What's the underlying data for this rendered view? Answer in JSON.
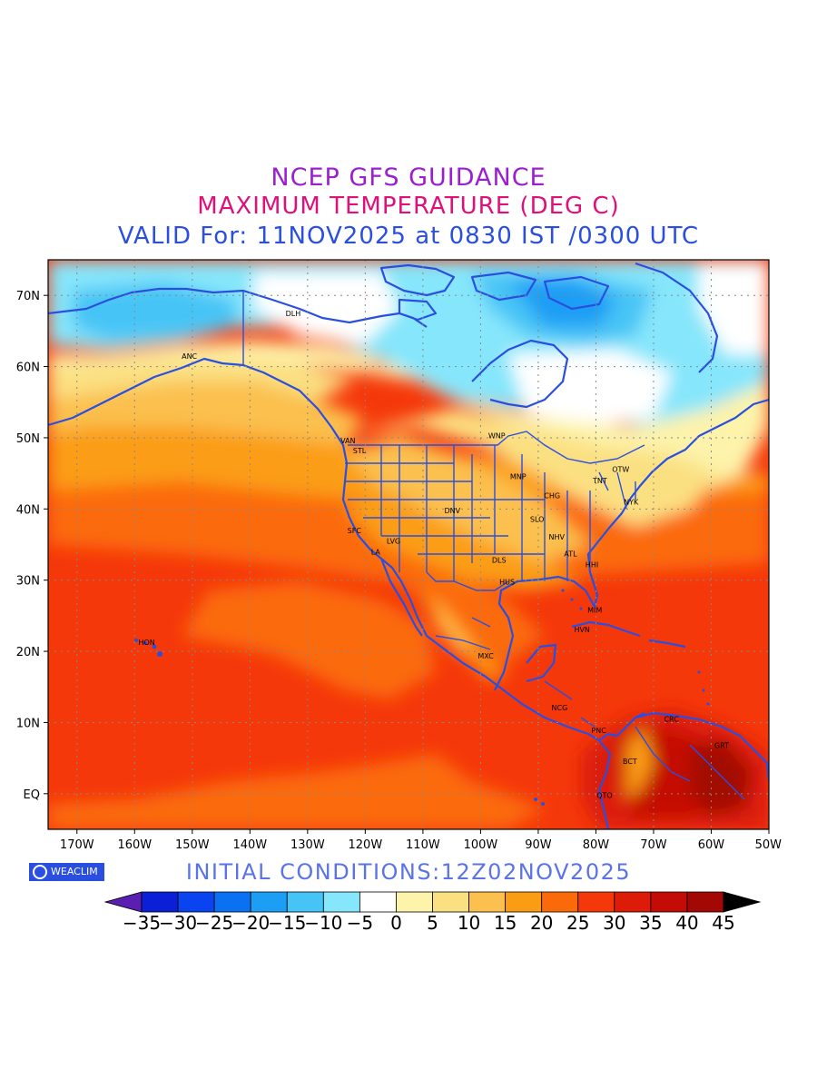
{
  "title": {
    "line1": "NCEP GFS GUIDANCE",
    "line2": "MAXIMUM TEMPERATURE (DEG C)",
    "line3": "VALID For: 11NOV2025 at 0830 IST /0300 UTC"
  },
  "colors": {
    "line1": "#9b1fd0",
    "line2": "#e0107a",
    "line3": "#2a4fe0",
    "coastline": "#2a4fe0"
  },
  "map": {
    "lon_range": [
      -175,
      -50
    ],
    "lat_range": [
      -5,
      75
    ],
    "lat_ticks": [
      {
        "lat": 70,
        "label": "70N"
      },
      {
        "lat": 60,
        "label": "60N"
      },
      {
        "lat": 50,
        "label": "50N"
      },
      {
        "lat": 40,
        "label": "40N"
      },
      {
        "lat": 30,
        "label": "30N"
      },
      {
        "lat": 20,
        "label": "20N"
      },
      {
        "lat": 10,
        "label": "10N"
      },
      {
        "lat": 0,
        "label": "EQ"
      }
    ],
    "lon_ticks": [
      {
        "lon": -170,
        "label": "170W"
      },
      {
        "lon": -160,
        "label": "160W"
      },
      {
        "lon": -150,
        "label": "150W"
      },
      {
        "lon": -140,
        "label": "140W"
      },
      {
        "lon": -130,
        "label": "130W"
      },
      {
        "lon": -120,
        "label": "120W"
      },
      {
        "lon": -110,
        "label": "110W"
      },
      {
        "lon": -100,
        "label": "100W"
      },
      {
        "lon": -90,
        "label": "90W"
      },
      {
        "lon": -80,
        "label": "80W"
      },
      {
        "lon": -70,
        "label": "70W"
      },
      {
        "lon": -60,
        "label": "60W"
      },
      {
        "lon": -50,
        "label": "50W"
      }
    ],
    "gridlines": true,
    "cities": [
      {
        "code": "ANC",
        "lon": -150.5,
        "lat": 61.5
      },
      {
        "code": "DLH",
        "lon": -132.5,
        "lat": 67.5
      },
      {
        "code": "VAN",
        "lon": -123.0,
        "lat": 49.6
      },
      {
        "code": "STL",
        "lon": -121.0,
        "lat": 48.2
      },
      {
        "code": "WNP",
        "lon": -97.2,
        "lat": 50.3
      },
      {
        "code": "MNP",
        "lon": -93.5,
        "lat": 44.6
      },
      {
        "code": "TNT",
        "lon": -79.3,
        "lat": 44.0
      },
      {
        "code": "OTW",
        "lon": -75.7,
        "lat": 45.6
      },
      {
        "code": "CHG",
        "lon": -87.6,
        "lat": 41.9
      },
      {
        "code": "NYK",
        "lon": -73.9,
        "lat": 41.0
      },
      {
        "code": "DNV",
        "lon": -104.9,
        "lat": 39.8
      },
      {
        "code": "SFC",
        "lon": -121.9,
        "lat": 37.0
      },
      {
        "code": "LVG",
        "lon": -115.1,
        "lat": 35.5
      },
      {
        "code": "SLO",
        "lon": -90.2,
        "lat": 38.6
      },
      {
        "code": "NHV",
        "lon": -86.8,
        "lat": 36.1
      },
      {
        "code": "LA",
        "lon": -118.2,
        "lat": 34.0
      },
      {
        "code": "ATL",
        "lon": -84.4,
        "lat": 33.7
      },
      {
        "code": "DLS",
        "lon": -96.8,
        "lat": 32.8
      },
      {
        "code": "HHI",
        "lon": -80.7,
        "lat": 32.2
      },
      {
        "code": "HUS",
        "lon": -95.4,
        "lat": 29.8
      },
      {
        "code": "MIM",
        "lon": -80.2,
        "lat": 25.8
      },
      {
        "code": "HVN",
        "lon": -82.4,
        "lat": 23.1
      },
      {
        "code": "HON",
        "lon": -157.9,
        "lat": 21.3
      },
      {
        "code": "MXC",
        "lon": -99.1,
        "lat": 19.4
      },
      {
        "code": "NCG",
        "lon": -86.3,
        "lat": 12.1
      },
      {
        "code": "CRC",
        "lon": -66.9,
        "lat": 10.5
      },
      {
        "code": "PNC",
        "lon": -79.5,
        "lat": 8.9
      },
      {
        "code": "GRT",
        "lon": -58.2,
        "lat": 6.8
      },
      {
        "code": "BCT",
        "lon": -74.1,
        "lat": 4.6
      },
      {
        "code": "QTO",
        "lon": -78.5,
        "lat": -0.2
      }
    ]
  },
  "brand": {
    "name": "WEACLIM"
  },
  "initial_conditions": "INITIAL  CONDITIONS:12Z02NOV2025",
  "legend": {
    "labels": [
      "-35",
      "-30",
      "-25",
      "-20",
      "-15",
      "-10",
      "-5",
      "0",
      "5",
      "10",
      "15",
      "20",
      "25",
      "30",
      "35",
      "40",
      "45"
    ],
    "colors": [
      "#5a1fb0",
      "#0a1fd6",
      "#0a44f0",
      "#0a72f2",
      "#1d9ef5",
      "#46c4f6",
      "#86e6fb",
      "#ffffff",
      "#fdf3aa",
      "#fbe082",
      "#fbc04d",
      "#fb9d14",
      "#fb6a0a",
      "#f5380a",
      "#dc1c08",
      "#c40c06",
      "#a30805",
      "#000000"
    ]
  }
}
